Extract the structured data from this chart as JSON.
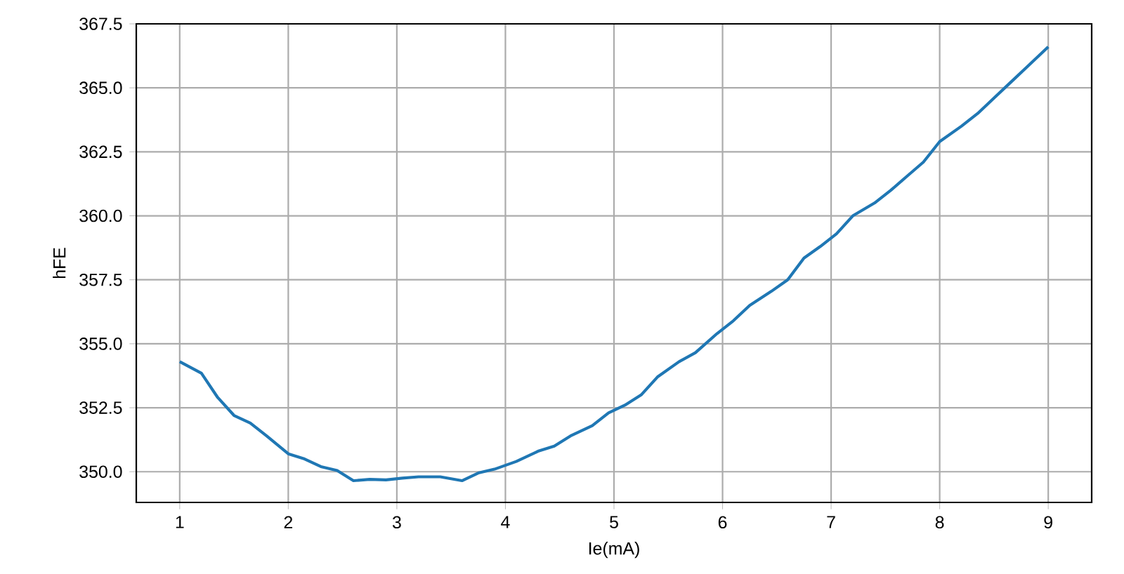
{
  "chart_data": {
    "type": "line",
    "xlabel": "Ie(mA)",
    "ylabel": "hFE",
    "x": [
      1,
      1.2,
      1.35,
      1.5,
      1.65,
      1.8,
      2,
      2.15,
      2.3,
      2.45,
      2.6,
      2.75,
      2.9,
      3.05,
      3.2,
      3.4,
      3.6,
      3.75,
      3.9,
      4.1,
      4.3,
      4.45,
      4.6,
      4.8,
      4.95,
      5.1,
      5.25,
      5.4,
      5.6,
      5.75,
      5.95,
      6.1,
      6.25,
      6.45,
      6.6,
      6.75,
      6.9,
      7.05,
      7.2,
      7.4,
      7.55,
      7.7,
      7.85,
      8.0,
      8.2,
      8.35,
      8.5,
      8.65,
      8.8,
      9
    ],
    "series": [
      {
        "color": "#1f77b4",
        "values": [
          354.3,
          353.85,
          352.9,
          352.2,
          351.9,
          351.4,
          350.7,
          350.5,
          350.2,
          350.05,
          349.65,
          349.7,
          349.68,
          349.75,
          349.8,
          349.8,
          349.65,
          349.95,
          350.1,
          350.4,
          350.8,
          351.0,
          351.4,
          351.8,
          352.3,
          352.6,
          353.0,
          353.7,
          354.3,
          354.65,
          355.4,
          355.9,
          356.5,
          357.05,
          357.5,
          358.35,
          358.8,
          359.3,
          360.0,
          360.5,
          361.0,
          361.55,
          362.1,
          362.9,
          363.5,
          364.0,
          364.6,
          365.2,
          365.8,
          366.6
        ]
      }
    ],
    "xlim": [
      0.6,
      9.4
    ],
    "ylim": [
      348.8,
      367.5
    ],
    "xticks": [
      1,
      2,
      3,
      4,
      5,
      6,
      7,
      8,
      9
    ],
    "yticks": [
      {
        "value": 350,
        "label": "350.0"
      },
      {
        "value": 352.5,
        "label": "352.5"
      },
      {
        "value": 355,
        "label": "355.0"
      },
      {
        "value": 357.5,
        "label": "357.5"
      },
      {
        "value": 360,
        "label": "360.0"
      },
      {
        "value": 362.5,
        "label": "362.5"
      },
      {
        "value": 365,
        "label": "365.0"
      },
      {
        "value": 367.5,
        "label": "367.5"
      }
    ],
    "grid": true,
    "marker": "none",
    "line_style": "solid"
  }
}
